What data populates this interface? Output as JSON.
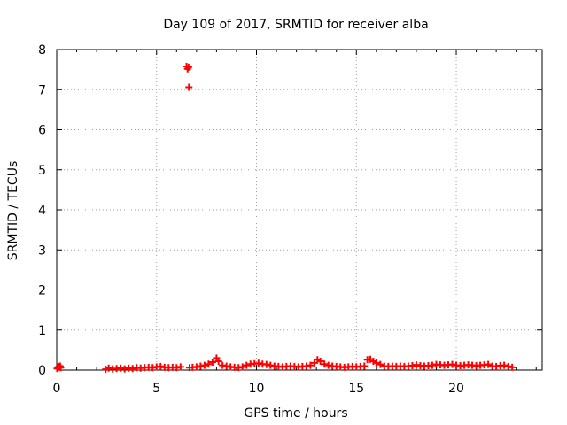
{
  "chart_data": {
    "type": "scatter",
    "title": "Day 109 of 2017, SRMTID for receiver alba",
    "xlabel": "GPS time / hours",
    "ylabel": "SRMTID / TECUs",
    "xlim": [
      0,
      24.3
    ],
    "ylim": [
      0,
      8
    ],
    "xticks": [
      0,
      5,
      10,
      15,
      20
    ],
    "yticks": [
      0,
      1,
      2,
      3,
      4,
      5,
      6,
      7,
      8
    ],
    "grid": true,
    "marker": "+",
    "series": [
      {
        "name": "SRMTID",
        "color": "#ff0000",
        "points": [
          [
            0.02,
            0.04
          ],
          [
            0.07,
            0.07
          ],
          [
            0.12,
            0.09
          ],
          [
            0.17,
            0.1
          ],
          [
            0.2,
            0.06
          ],
          [
            2.45,
            0.02
          ],
          [
            2.6,
            0.05
          ],
          [
            2.8,
            0.03
          ],
          [
            3.0,
            0.04
          ],
          [
            3.2,
            0.05
          ],
          [
            3.4,
            0.03
          ],
          [
            3.6,
            0.05
          ],
          [
            3.8,
            0.04
          ],
          [
            4.0,
            0.06
          ],
          [
            4.2,
            0.05
          ],
          [
            4.4,
            0.06
          ],
          [
            4.6,
            0.07
          ],
          [
            4.8,
            0.06
          ],
          [
            5.0,
            0.08
          ],
          [
            5.2,
            0.09
          ],
          [
            5.4,
            0.07
          ],
          [
            5.6,
            0.06
          ],
          [
            5.8,
            0.07
          ],
          [
            6.0,
            0.06
          ],
          [
            6.2,
            0.08
          ],
          [
            6.5,
            7.58
          ],
          [
            6.55,
            7.52
          ],
          [
            6.6,
            7.56
          ],
          [
            6.62,
            7.06
          ],
          [
            6.65,
            0.06
          ],
          [
            6.8,
            0.07
          ],
          [
            7.0,
            0.08
          ],
          [
            7.2,
            0.1
          ],
          [
            7.4,
            0.12
          ],
          [
            7.6,
            0.15
          ],
          [
            7.8,
            0.2
          ],
          [
            8.0,
            0.3
          ],
          [
            8.1,
            0.22
          ],
          [
            8.3,
            0.12
          ],
          [
            8.5,
            0.1
          ],
          [
            8.7,
            0.08
          ],
          [
            8.9,
            0.07
          ],
          [
            9.1,
            0.06
          ],
          [
            9.3,
            0.08
          ],
          [
            9.5,
            0.12
          ],
          [
            9.7,
            0.15
          ],
          [
            9.9,
            0.16
          ],
          [
            10.1,
            0.17
          ],
          [
            10.3,
            0.15
          ],
          [
            10.5,
            0.14
          ],
          [
            10.7,
            0.12
          ],
          [
            10.9,
            0.1
          ],
          [
            11.1,
            0.09
          ],
          [
            11.3,
            0.08
          ],
          [
            11.5,
            0.09
          ],
          [
            11.7,
            0.1
          ],
          [
            11.9,
            0.09
          ],
          [
            12.1,
            0.08
          ],
          [
            12.3,
            0.09
          ],
          [
            12.5,
            0.1
          ],
          [
            12.7,
            0.12
          ],
          [
            12.9,
            0.18
          ],
          [
            13.05,
            0.26
          ],
          [
            13.2,
            0.22
          ],
          [
            13.4,
            0.15
          ],
          [
            13.6,
            0.12
          ],
          [
            13.8,
            0.1
          ],
          [
            14.0,
            0.09
          ],
          [
            14.2,
            0.08
          ],
          [
            14.4,
            0.07
          ],
          [
            14.6,
            0.08
          ],
          [
            14.8,
            0.09
          ],
          [
            15.0,
            0.08
          ],
          [
            15.2,
            0.09
          ],
          [
            15.4,
            0.1
          ],
          [
            15.55,
            0.26
          ],
          [
            15.7,
            0.27
          ],
          [
            15.85,
            0.22
          ],
          [
            16.0,
            0.18
          ],
          [
            16.2,
            0.14
          ],
          [
            16.4,
            0.1
          ],
          [
            16.6,
            0.09
          ],
          [
            16.8,
            0.1
          ],
          [
            17.0,
            0.09
          ],
          [
            17.2,
            0.1
          ],
          [
            17.4,
            0.09
          ],
          [
            17.6,
            0.1
          ],
          [
            17.8,
            0.11
          ],
          [
            18.0,
            0.13
          ],
          [
            18.2,
            0.11
          ],
          [
            18.4,
            0.1
          ],
          [
            18.6,
            0.11
          ],
          [
            18.8,
            0.12
          ],
          [
            19.0,
            0.14
          ],
          [
            19.2,
            0.13
          ],
          [
            19.4,
            0.12
          ],
          [
            19.6,
            0.13
          ],
          [
            19.8,
            0.14
          ],
          [
            20.0,
            0.12
          ],
          [
            20.2,
            0.11
          ],
          [
            20.4,
            0.12
          ],
          [
            20.6,
            0.13
          ],
          [
            20.8,
            0.12
          ],
          [
            21.0,
            0.11
          ],
          [
            21.2,
            0.12
          ],
          [
            21.4,
            0.13
          ],
          [
            21.6,
            0.14
          ],
          [
            21.8,
            0.1
          ],
          [
            22.0,
            0.09
          ],
          [
            22.2,
            0.11
          ],
          [
            22.4,
            0.12
          ],
          [
            22.6,
            0.09
          ],
          [
            22.8,
            0.07
          ]
        ]
      }
    ]
  }
}
